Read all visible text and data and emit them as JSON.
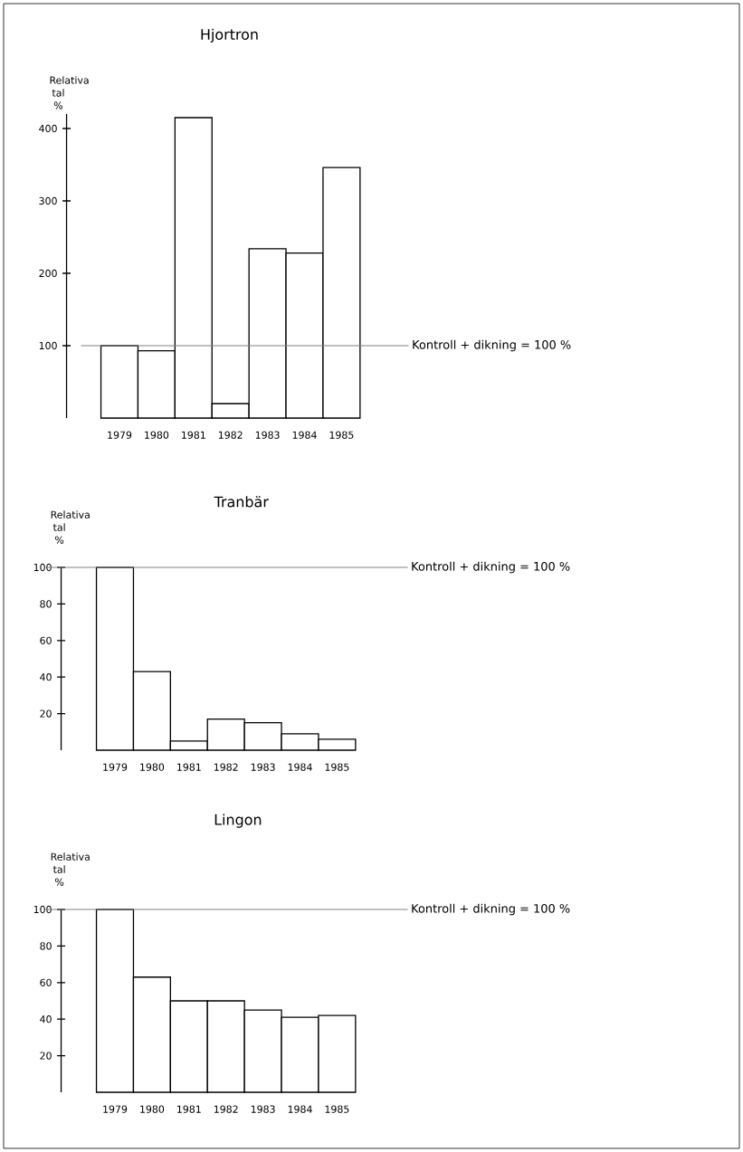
{
  "chart_data": [
    {
      "type": "bar",
      "title": "Hjortron",
      "ylabel": "Relativa tal %",
      "categories": [
        "1979",
        "1980",
        "1981",
        "1982",
        "1983",
        "1984",
        "1985"
      ],
      "values": [
        100,
        93,
        415,
        20,
        234,
        228,
        346
      ],
      "color": "#ffffff",
      "ylim": [
        0,
        420
      ],
      "yticks": [
        100,
        200,
        300,
        400
      ],
      "ref_lines": [
        {
          "axis": "y",
          "value": 100,
          "label": "Kontroll + dikning = 100 %",
          "color": "#808080"
        }
      ]
    },
    {
      "type": "bar",
      "title": "Tranbär",
      "ylabel": "Relativa tal %",
      "categories": [
        "1979",
        "1980",
        "1981",
        "1982",
        "1983",
        "1984",
        "1985"
      ],
      "values": [
        100,
        43,
        5,
        17,
        15,
        9,
        6
      ],
      "color": "#ffffff",
      "ylim": [
        0,
        100
      ],
      "yticks": [
        20,
        40,
        60,
        80,
        100
      ],
      "ref_lines": [
        {
          "axis": "y",
          "value": 100,
          "label": "Kontroll + dikning = 100 %",
          "color": "#808080"
        }
      ]
    },
    {
      "type": "bar",
      "title": "Lingon",
      "ylabel": "Relativa tal %",
      "categories": [
        "1979",
        "1980",
        "1981",
        "1982",
        "1983",
        "1984",
        "1985"
      ],
      "values": [
        100,
        63,
        50,
        50,
        45,
        41,
        42
      ],
      "color": "#ffffff",
      "ylim": [
        0,
        100
      ],
      "yticks": [
        20,
        40,
        60,
        80,
        100
      ],
      "ref_lines": [
        {
          "axis": "y",
          "value": 100,
          "label": "Kontroll + dikning = 100 %",
          "color": "#808080"
        }
      ]
    }
  ]
}
